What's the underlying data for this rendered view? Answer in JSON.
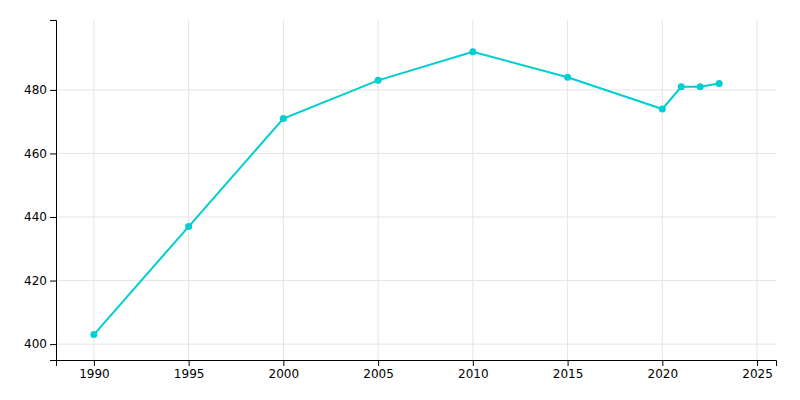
{
  "chart_data": {
    "type": "line",
    "x": [
      1990,
      1995,
      2000,
      2005,
      2010,
      2015,
      2020,
      2021,
      2022,
      2023
    ],
    "values": [
      403,
      437,
      471,
      483,
      492,
      484,
      474,
      481,
      481,
      482
    ],
    "color": "#00CED1",
    "marker": "circle",
    "xlim": [
      1988,
      2026
    ],
    "ylim": [
      395,
      502
    ],
    "xticks": [
      1990,
      1995,
      2000,
      2005,
      2010,
      2015,
      2020,
      2025
    ],
    "yticks": [
      400,
      420,
      440,
      460,
      480
    ],
    "grid": true
  }
}
